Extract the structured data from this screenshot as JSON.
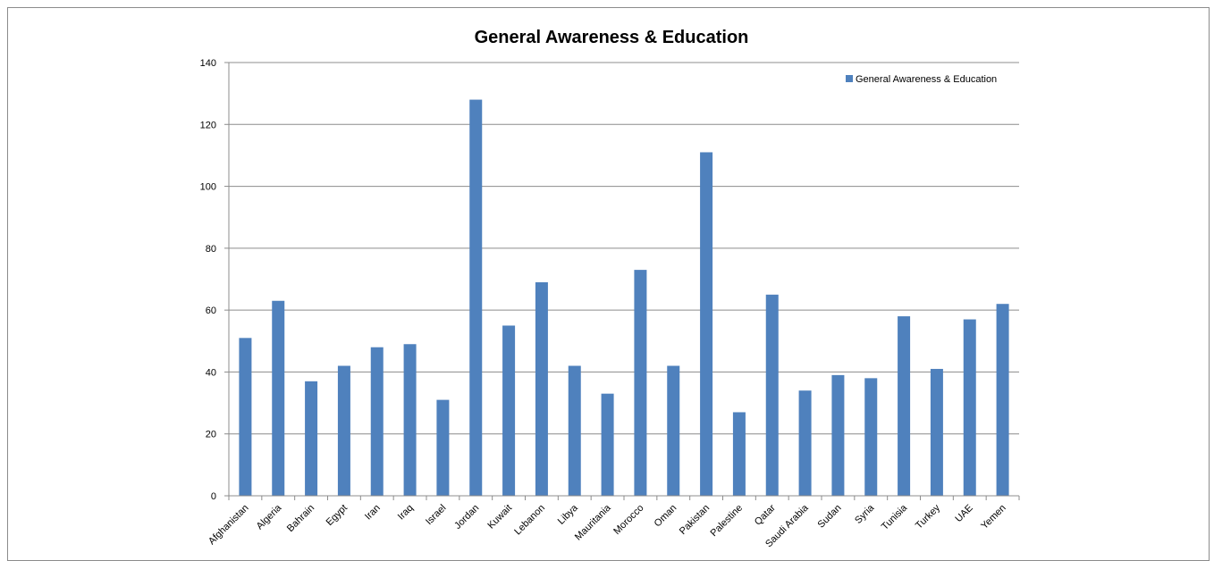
{
  "chart_data": {
    "type": "bar",
    "title": "General Awareness & Education",
    "xlabel": "",
    "ylabel": "",
    "ylim": [
      0,
      140
    ],
    "yticks": [
      0,
      20,
      40,
      60,
      80,
      100,
      120,
      140
    ],
    "grid": true,
    "legend_position": "top-right",
    "categories": [
      "Afghanistan",
      "Algeria",
      "Bahrain",
      "Egypt",
      "Iran",
      "Iraq",
      "Israel",
      "Jordan",
      "Kuwait",
      "Lebanon",
      "Libya",
      "Mauritania",
      "Morocco",
      "Oman",
      "Pakistan",
      "Palestine",
      "Qatar",
      "Saudi Arabia",
      "Sudan",
      "Syria",
      "Tunisia",
      "Turkey",
      "UAE",
      "Yemen"
    ],
    "series": [
      {
        "name": "General Awareness & Education",
        "color": "#4F81BD",
        "values": [
          51,
          63,
          37,
          42,
          48,
          49,
          31,
          128,
          55,
          69,
          42,
          33,
          73,
          42,
          111,
          27,
          65,
          34,
          39,
          38,
          58,
          41,
          57,
          62
        ]
      }
    ]
  }
}
